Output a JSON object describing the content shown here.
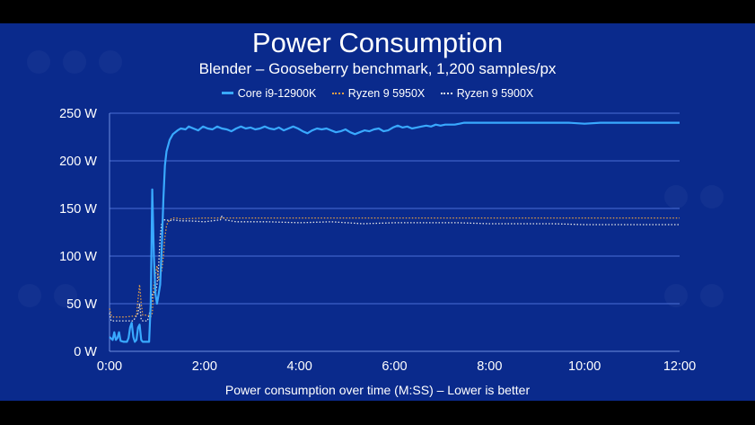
{
  "chart_data": {
    "type": "line",
    "title": "Power Consumption",
    "subtitle": "Blender – Gooseberry benchmark, 1,200 samples/px",
    "xlabel": "Power consumption over time (M:SS) – Lower is better",
    "ylabel": "",
    "xlim": [
      0,
      720
    ],
    "ylim": [
      0,
      250
    ],
    "x_tick_labels": [
      "0:00",
      "2:00",
      "4:00",
      "6:00",
      "8:00",
      "10:00",
      "12:00"
    ],
    "x_tick_values": [
      0,
      120,
      240,
      360,
      480,
      600,
      720
    ],
    "y_tick_labels": [
      "0 W",
      "50 W",
      "100 W",
      "150 W",
      "200 W",
      "250 W"
    ],
    "y_tick_values": [
      0,
      50,
      100,
      150,
      200,
      250
    ],
    "x_unit": "seconds",
    "grid": "horizontal",
    "legend_position": "top-center",
    "series": [
      {
        "name": "Core i9-12900K",
        "color": "#39a9ff",
        "style": "solid",
        "points": [
          [
            0,
            15
          ],
          [
            4,
            12
          ],
          [
            6,
            20
          ],
          [
            8,
            12
          ],
          [
            10,
            14
          ],
          [
            12,
            20
          ],
          [
            14,
            11
          ],
          [
            18,
            10
          ],
          [
            22,
            10
          ],
          [
            24,
            14
          ],
          [
            26,
            25
          ],
          [
            28,
            30
          ],
          [
            30,
            15
          ],
          [
            32,
            10
          ],
          [
            34,
            12
          ],
          [
            36,
            25
          ],
          [
            38,
            28
          ],
          [
            40,
            12
          ],
          [
            42,
            10
          ],
          [
            46,
            10
          ],
          [
            50,
            10
          ],
          [
            52,
            50
          ],
          [
            54,
            170
          ],
          [
            56,
            100
          ],
          [
            58,
            60
          ],
          [
            60,
            50
          ],
          [
            62,
            60
          ],
          [
            64,
            70
          ],
          [
            66,
            110
          ],
          [
            68,
            160
          ],
          [
            70,
            195
          ],
          [
            72,
            210
          ],
          [
            76,
            222
          ],
          [
            80,
            228
          ],
          [
            86,
            232
          ],
          [
            90,
            234
          ],
          [
            96,
            233
          ],
          [
            100,
            236
          ],
          [
            106,
            234
          ],
          [
            112,
            232
          ],
          [
            118,
            236
          ],
          [
            124,
            234
          ],
          [
            130,
            233
          ],
          [
            136,
            236
          ],
          [
            142,
            234
          ],
          [
            148,
            233
          ],
          [
            154,
            231
          ],
          [
            160,
            234
          ],
          [
            166,
            236
          ],
          [
            172,
            234
          ],
          [
            178,
            235
          ],
          [
            184,
            233
          ],
          [
            190,
            234
          ],
          [
            196,
            236
          ],
          [
            202,
            234
          ],
          [
            208,
            233
          ],
          [
            214,
            235
          ],
          [
            220,
            232
          ],
          [
            226,
            234
          ],
          [
            232,
            236
          ],
          [
            238,
            234
          ],
          [
            244,
            231
          ],
          [
            250,
            229
          ],
          [
            256,
            232
          ],
          [
            262,
            234
          ],
          [
            268,
            233
          ],
          [
            274,
            234
          ],
          [
            280,
            232
          ],
          [
            286,
            230
          ],
          [
            292,
            231
          ],
          [
            298,
            233
          ],
          [
            304,
            230
          ],
          [
            310,
            228
          ],
          [
            316,
            230
          ],
          [
            322,
            232
          ],
          [
            328,
            231
          ],
          [
            334,
            233
          ],
          [
            340,
            234
          ],
          [
            346,
            231
          ],
          [
            352,
            232
          ],
          [
            358,
            235
          ],
          [
            364,
            237
          ],
          [
            370,
            235
          ],
          [
            376,
            236
          ],
          [
            382,
            234
          ],
          [
            388,
            235
          ],
          [
            394,
            236
          ],
          [
            400,
            237
          ],
          [
            406,
            236
          ],
          [
            412,
            238
          ],
          [
            418,
            237
          ],
          [
            424,
            238
          ],
          [
            430,
            238
          ],
          [
            436,
            238
          ],
          [
            442,
            239
          ],
          [
            448,
            240
          ],
          [
            454,
            240
          ],
          [
            460,
            240
          ],
          [
            470,
            240
          ],
          [
            480,
            240
          ],
          [
            500,
            240
          ],
          [
            520,
            240
          ],
          [
            540,
            240
          ],
          [
            560,
            240
          ],
          [
            580,
            240
          ],
          [
            600,
            239
          ],
          [
            620,
            240
          ],
          [
            640,
            240
          ],
          [
            660,
            240
          ],
          [
            680,
            240
          ],
          [
            700,
            240
          ],
          [
            720,
            240
          ]
        ]
      },
      {
        "name": "Ryzen 9 5950X",
        "color": "#e8a045",
        "style": "dotted",
        "points": [
          [
            0,
            45
          ],
          [
            2,
            38
          ],
          [
            4,
            36
          ],
          [
            10,
            36
          ],
          [
            20,
            36
          ],
          [
            30,
            37
          ],
          [
            34,
            37
          ],
          [
            36,
            55
          ],
          [
            38,
            70
          ],
          [
            40,
            50
          ],
          [
            42,
            38
          ],
          [
            48,
            38
          ],
          [
            52,
            36
          ],
          [
            54,
            40
          ],
          [
            56,
            70
          ],
          [
            58,
            80
          ],
          [
            60,
            90
          ],
          [
            62,
            75
          ],
          [
            64,
            80
          ],
          [
            66,
            85
          ],
          [
            68,
            100
          ],
          [
            70,
            120
          ],
          [
            72,
            132
          ],
          [
            74,
            136
          ],
          [
            78,
            139
          ],
          [
            80,
            140
          ],
          [
            84,
            140
          ],
          [
            90,
            139
          ],
          [
            120,
            140
          ],
          [
            200,
            140
          ],
          [
            300,
            140
          ],
          [
            400,
            140
          ],
          [
            480,
            140
          ],
          [
            560,
            140
          ],
          [
            640,
            140
          ],
          [
            720,
            140
          ]
        ]
      },
      {
        "name": "Ryzen 9 5900X",
        "color": "#e6e6e6",
        "style": "dotted",
        "points": [
          [
            0,
            40
          ],
          [
            2,
            32
          ],
          [
            4,
            32
          ],
          [
            10,
            32
          ],
          [
            20,
            32
          ],
          [
            30,
            32
          ],
          [
            36,
            40
          ],
          [
            38,
            50
          ],
          [
            40,
            33
          ],
          [
            42,
            32
          ],
          [
            48,
            32
          ],
          [
            52,
            45
          ],
          [
            54,
            60
          ],
          [
            56,
            62
          ],
          [
            58,
            60
          ],
          [
            60,
            70
          ],
          [
            62,
            90
          ],
          [
            64,
            120
          ],
          [
            66,
            135
          ],
          [
            68,
            138
          ],
          [
            72,
            138
          ],
          [
            76,
            137
          ],
          [
            80,
            138
          ],
          [
            90,
            137
          ],
          [
            100,
            137
          ],
          [
            120,
            136
          ],
          [
            140,
            138
          ],
          [
            142,
            142
          ],
          [
            146,
            138
          ],
          [
            160,
            136
          ],
          [
            200,
            136
          ],
          [
            240,
            135
          ],
          [
            280,
            136
          ],
          [
            320,
            134
          ],
          [
            360,
            135
          ],
          [
            400,
            135
          ],
          [
            440,
            135
          ],
          [
            480,
            134
          ],
          [
            520,
            134
          ],
          [
            560,
            134
          ],
          [
            600,
            133
          ],
          [
            640,
            133
          ],
          [
            680,
            133
          ],
          [
            720,
            133
          ]
        ]
      }
    ]
  }
}
